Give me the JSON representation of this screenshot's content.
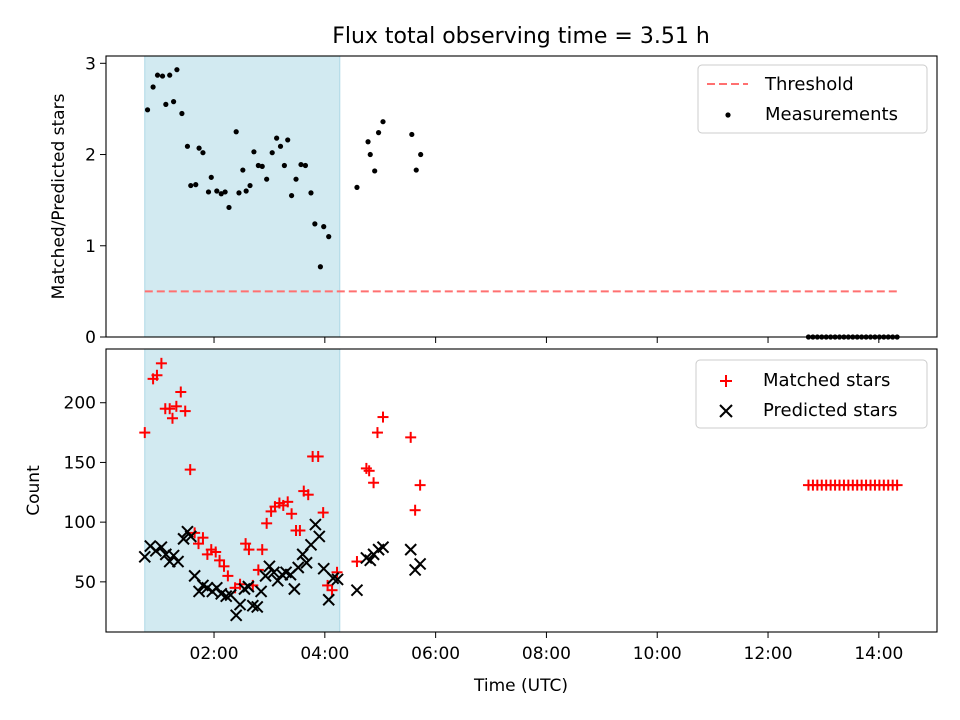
{
  "colors": {
    "shade": "#add8e6",
    "threshold": "#ff7070",
    "matched": "#ff0000",
    "predicted": "#000000",
    "measurement": "#000000"
  },
  "chart_data": [
    {
      "type": "scatter",
      "title": "Flux total observing time = 3.51 h",
      "xlabel": "",
      "ylabel": "Matched/Predicted stars",
      "xlim_hours": [
        0.05,
        15.05
      ],
      "ylim": [
        0,
        3.08
      ],
      "yticks": [
        0,
        1,
        2,
        3
      ],
      "shaded_span_hours": [
        0.75,
        4.27
      ],
      "legend_position": "top-right",
      "series": [
        {
          "name": "Threshold",
          "kind": "dashed-line",
          "x_hours": [
            0.75,
            14.35
          ],
          "y": [
            0.5,
            0.5
          ]
        },
        {
          "name": "Measurements",
          "kind": "dots",
          "points": [
            [
              0.8,
              2.49
            ],
            [
              0.9,
              2.74
            ],
            [
              0.98,
              2.87
            ],
            [
              1.07,
              2.86
            ],
            [
              1.13,
              2.55
            ],
            [
              1.2,
              2.87
            ],
            [
              1.27,
              2.58
            ],
            [
              1.33,
              2.93
            ],
            [
              1.42,
              2.45
            ],
            [
              1.52,
              2.09
            ],
            [
              1.58,
              1.66
            ],
            [
              1.67,
              1.67
            ],
            [
              1.73,
              2.07
            ],
            [
              1.8,
              2.02
            ],
            [
              1.9,
              1.59
            ],
            [
              1.95,
              1.75
            ],
            [
              2.05,
              1.6
            ],
            [
              2.13,
              1.57
            ],
            [
              2.2,
              1.59
            ],
            [
              2.27,
              1.42
            ],
            [
              2.4,
              2.25
            ],
            [
              2.45,
              1.58
            ],
            [
              2.52,
              1.83
            ],
            [
              2.58,
              1.6
            ],
            [
              2.65,
              1.66
            ],
            [
              2.72,
              2.03
            ],
            [
              2.8,
              1.88
            ],
            [
              2.87,
              1.87
            ],
            [
              2.95,
              1.73
            ],
            [
              3.05,
              2.02
            ],
            [
              3.13,
              2.18
            ],
            [
              3.2,
              2.09
            ],
            [
              3.27,
              1.88
            ],
            [
              3.33,
              2.16
            ],
            [
              3.4,
              1.55
            ],
            [
              3.48,
              1.73
            ],
            [
              3.57,
              1.89
            ],
            [
              3.65,
              1.88
            ],
            [
              3.75,
              1.58
            ],
            [
              3.82,
              1.24
            ],
            [
              3.92,
              0.77
            ],
            [
              3.98,
              1.21
            ],
            [
              4.07,
              1.1
            ],
            [
              4.58,
              1.64
            ],
            [
              4.78,
              2.14
            ],
            [
              4.82,
              2.0
            ],
            [
              4.9,
              1.82
            ],
            [
              4.97,
              2.24
            ],
            [
              5.05,
              2.36
            ],
            [
              5.57,
              2.22
            ],
            [
              5.65,
              1.83
            ],
            [
              5.73,
              2.0
            ],
            [
              12.73,
              0
            ],
            [
              12.81,
              0
            ],
            [
              12.89,
              0
            ],
            [
              12.97,
              0
            ],
            [
              13.05,
              0
            ],
            [
              13.13,
              0
            ],
            [
              13.21,
              0
            ],
            [
              13.29,
              0
            ],
            [
              13.37,
              0
            ],
            [
              13.45,
              0
            ],
            [
              13.53,
              0
            ],
            [
              13.61,
              0
            ],
            [
              13.69,
              0
            ],
            [
              13.77,
              0
            ],
            [
              13.85,
              0
            ],
            [
              13.93,
              0
            ],
            [
              14.01,
              0
            ],
            [
              14.09,
              0
            ],
            [
              14.17,
              0
            ],
            [
              14.25,
              0
            ],
            [
              14.33,
              0
            ]
          ]
        }
      ]
    },
    {
      "type": "scatter",
      "title": "",
      "xlabel": "Time (UTC)",
      "ylabel": "Count",
      "xlim_hours": [
        0.05,
        15.05
      ],
      "ylim": [
        8,
        245
      ],
      "yticks": [
        50,
        100,
        150,
        200
      ],
      "xticks_hours": [
        2,
        4,
        6,
        8,
        10,
        12,
        14
      ],
      "xtick_labels": [
        "02:00",
        "04:00",
        "06:00",
        "08:00",
        "10:00",
        "12:00",
        "14:00"
      ],
      "shaded_span_hours": [
        0.75,
        4.27
      ],
      "legend_position": "top-right",
      "series": [
        {
          "name": "Matched stars",
          "kind": "plus",
          "points": [
            [
              0.75,
              175
            ],
            [
              0.9,
              220
            ],
            [
              0.97,
              223
            ],
            [
              1.05,
              233
            ],
            [
              1.12,
              195
            ],
            [
              1.2,
              195
            ],
            [
              1.25,
              187
            ],
            [
              1.32,
              197
            ],
            [
              1.4,
              209
            ],
            [
              1.48,
              193
            ],
            [
              1.57,
              144
            ],
            [
              1.65,
              91
            ],
            [
              1.72,
              82
            ],
            [
              1.8,
              87
            ],
            [
              1.88,
              73
            ],
            [
              1.95,
              77
            ],
            [
              2.03,
              75
            ],
            [
              2.1,
              68
            ],
            [
              2.18,
              63
            ],
            [
              2.25,
              55
            ],
            [
              2.38,
              45
            ],
            [
              2.47,
              48
            ],
            [
              2.57,
              82
            ],
            [
              2.63,
              77
            ],
            [
              2.7,
              47
            ],
            [
              2.8,
              60
            ],
            [
              2.87,
              77
            ],
            [
              2.95,
              99
            ],
            [
              3.03,
              109
            ],
            [
              3.1,
              113
            ],
            [
              3.18,
              116
            ],
            [
              3.25,
              114
            ],
            [
              3.33,
              117
            ],
            [
              3.4,
              107
            ],
            [
              3.48,
              93
            ],
            [
              3.55,
              93
            ],
            [
              3.62,
              126
            ],
            [
              3.7,
              123
            ],
            [
              3.78,
              155
            ],
            [
              3.88,
              155
            ],
            [
              3.97,
              108
            ],
            [
              4.05,
              47
            ],
            [
              4.13,
              43
            ],
            [
              4.22,
              58
            ],
            [
              4.58,
              67
            ],
            [
              4.75,
              145
            ],
            [
              4.8,
              143
            ],
            [
              4.88,
              133
            ],
            [
              4.95,
              175
            ],
            [
              5.05,
              188
            ],
            [
              5.55,
              171
            ],
            [
              5.63,
              110
            ],
            [
              5.72,
              131
            ],
            [
              12.73,
              131
            ],
            [
              12.81,
              131
            ],
            [
              12.89,
              131
            ],
            [
              12.97,
              131
            ],
            [
              13.05,
              131
            ],
            [
              13.13,
              131
            ],
            [
              13.21,
              131
            ],
            [
              13.29,
              131
            ],
            [
              13.37,
              131
            ],
            [
              13.45,
              131
            ],
            [
              13.53,
              131
            ],
            [
              13.61,
              131
            ],
            [
              13.69,
              131
            ],
            [
              13.77,
              131
            ],
            [
              13.85,
              131
            ],
            [
              13.93,
              131
            ],
            [
              14.01,
              131
            ],
            [
              14.09,
              131
            ],
            [
              14.17,
              131
            ],
            [
              14.25,
              131
            ],
            [
              14.33,
              131
            ]
          ]
        },
        {
          "name": "Predicted stars",
          "kind": "x",
          "points": [
            [
              0.75,
              71
            ],
            [
              0.85,
              80
            ],
            [
              0.95,
              76
            ],
            [
              1.05,
              79
            ],
            [
              1.13,
              73
            ],
            [
              1.2,
              67
            ],
            [
              1.27,
              72
            ],
            [
              1.35,
              67
            ],
            [
              1.45,
              86
            ],
            [
              1.52,
              92
            ],
            [
              1.58,
              88
            ],
            [
              1.65,
              55
            ],
            [
              1.73,
              42
            ],
            [
              1.8,
              47
            ],
            [
              1.88,
              45
            ],
            [
              1.97,
              42
            ],
            [
              2.05,
              45
            ],
            [
              2.13,
              40
            ],
            [
              2.22,
              38
            ],
            [
              2.3,
              39
            ],
            [
              2.4,
              22
            ],
            [
              2.47,
              31
            ],
            [
              2.55,
              44
            ],
            [
              2.62,
              46
            ],
            [
              2.7,
              30
            ],
            [
              2.78,
              29
            ],
            [
              2.85,
              42
            ],
            [
              2.93,
              55
            ],
            [
              3.0,
              63
            ],
            [
              3.08,
              58
            ],
            [
              3.15,
              51
            ],
            [
              3.23,
              56
            ],
            [
              3.3,
              58
            ],
            [
              3.38,
              56
            ],
            [
              3.45,
              44
            ],
            [
              3.52,
              62
            ],
            [
              3.6,
              73
            ],
            [
              3.67,
              66
            ],
            [
              3.75,
              81
            ],
            [
              3.83,
              98
            ],
            [
              3.9,
              88
            ],
            [
              3.98,
              61
            ],
            [
              4.07,
              35
            ],
            [
              4.15,
              53
            ],
            [
              4.23,
              52
            ],
            [
              4.58,
              43
            ],
            [
              4.75,
              70
            ],
            [
              4.82,
              68
            ],
            [
              4.88,
              73
            ],
            [
              4.97,
              77
            ],
            [
              5.05,
              79
            ],
            [
              5.55,
              77
            ],
            [
              5.63,
              60
            ],
            [
              5.72,
              65
            ]
          ]
        }
      ]
    }
  ]
}
